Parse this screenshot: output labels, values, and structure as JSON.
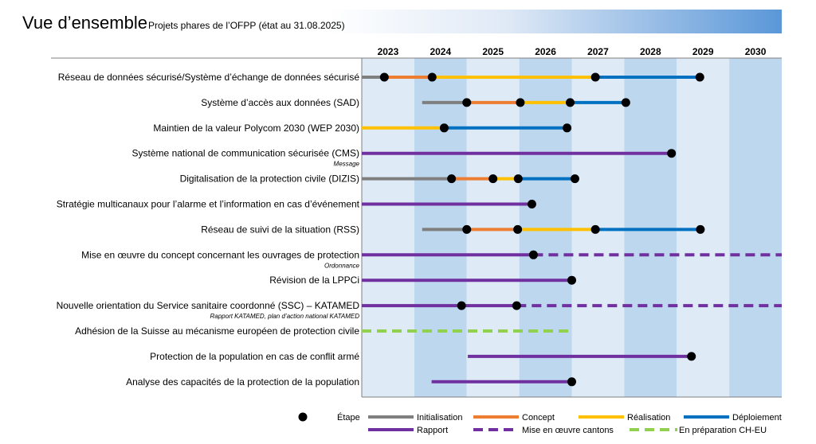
{
  "title": "Vue d’ensemble",
  "subtitle": "Projets phares de l’OFPP (état au 31.08.2025)",
  "colors": {
    "Initialisation": "#7f7f7f",
    "Concept": "#ed7d31",
    "Réalisation": "#ffc000",
    "Déploiement": "#0070c0",
    "Rapport": "#7030a0",
    "Mise en œuvre cantons": "#7030a0",
    "En préparation CH-EU": "#92d050",
    "year_light": "#deebf7",
    "year_dark": "#bdd7ee",
    "milestone": "#000000"
  },
  "chart_data": {
    "type": "gantt",
    "x_axis": {
      "years": [
        "2023",
        "2024",
        "2025",
        "2026",
        "2027",
        "2028",
        "2029",
        "2030"
      ],
      "range": [
        2023.0,
        2031.0
      ],
      "unit": "year"
    },
    "rows": [
      {
        "label": "Réseau de données sécurisé/Système d’échange de données sécurisé",
        "sublabel": "",
        "segments": [
          {
            "phase": "Initialisation",
            "start": 2023.0,
            "end": 2023.43
          },
          {
            "phase": "Concept",
            "start": 2023.43,
            "end": 2024.34
          },
          {
            "phase": "Réalisation",
            "start": 2024.34,
            "end": 2027.45
          },
          {
            "phase": "Déploiement",
            "start": 2027.45,
            "end": 2029.44
          }
        ],
        "milestones": [
          2023.43,
          2024.34,
          2027.45,
          2029.44
        ]
      },
      {
        "label": "Système d’accès aux données (SAD)",
        "sublabel": "",
        "segments": [
          {
            "phase": "Initialisation",
            "start": 2024.15,
            "end": 2025.0
          },
          {
            "phase": "Concept",
            "start": 2025.0,
            "end": 2026.02
          },
          {
            "phase": "Réalisation",
            "start": 2026.02,
            "end": 2026.97
          },
          {
            "phase": "Déploiement",
            "start": 2026.97,
            "end": 2028.03
          }
        ],
        "milestones": [
          2025.0,
          2026.02,
          2026.97,
          2028.03
        ]
      },
      {
        "label": "Maintien de la valeur Polycom 2030 (WEP 2030)",
        "sublabel": "",
        "segments": [
          {
            "phase": "Réalisation",
            "start": 2023.0,
            "end": 2024.57
          },
          {
            "phase": "Déploiement",
            "start": 2024.57,
            "end": 2026.91
          }
        ],
        "milestones": [
          2024.57,
          2026.91
        ]
      },
      {
        "label": "Système national de communication sécurisée (CMS)",
        "sublabel": "Message",
        "segments": [
          {
            "phase": "Rapport",
            "start": 2023.0,
            "end": 2028.9
          }
        ],
        "milestones": [
          2028.9
        ]
      },
      {
        "label": "Digitalisation de la protection civile (DIZIS)",
        "sublabel": "",
        "segments": [
          {
            "phase": "Initialisation",
            "start": 2023.0,
            "end": 2024.71
          },
          {
            "phase": "Concept",
            "start": 2024.71,
            "end": 2025.5
          },
          {
            "phase": "Réalisation",
            "start": 2025.5,
            "end": 2025.98
          },
          {
            "phase": "Déploiement",
            "start": 2025.98,
            "end": 2027.06
          }
        ],
        "milestones": [
          2024.71,
          2025.5,
          2025.98,
          2027.06
        ]
      },
      {
        "label": "Stratégie multicanaux pour l’alarme et l’information en cas d’événement",
        "sublabel": "",
        "segments": [
          {
            "phase": "Rapport",
            "start": 2023.0,
            "end": 2026.24
          }
        ],
        "milestones": [
          2026.24
        ]
      },
      {
        "label": "Réseau de suivi de la situation (RSS)",
        "sublabel": "",
        "segments": [
          {
            "phase": "Initialisation",
            "start": 2024.15,
            "end": 2025.0
          },
          {
            "phase": "Concept",
            "start": 2025.0,
            "end": 2025.97
          },
          {
            "phase": "Réalisation",
            "start": 2025.97,
            "end": 2027.45
          },
          {
            "phase": "Déploiement",
            "start": 2027.45,
            "end": 2029.45
          }
        ],
        "milestones": [
          2025.0,
          2025.97,
          2027.45,
          2029.45
        ]
      },
      {
        "label": "Mise en œuvre du concept concernant les ouvrages de protection",
        "sublabel": "Ordonnance",
        "segments": [
          {
            "phase": "Rapport",
            "start": 2023.0,
            "end": 2026.27
          },
          {
            "phase": "Mise en œuvre cantons",
            "start": 2026.27,
            "end": 2031.0
          }
        ],
        "milestones": [
          2026.27
        ]
      },
      {
        "label": "Révision de la LPPCi",
        "sublabel": "",
        "segments": [
          {
            "phase": "Rapport",
            "start": 2023.0,
            "end": 2027.0
          }
        ],
        "milestones": [
          2027.0
        ]
      },
      {
        "label": "Nouvelle orientation du Service sanitaire coordonné (SSC) – KATAMED",
        "sublabel": "Rapport KATAMED, plan d’action national KATAMED",
        "segments": [
          {
            "phase": "Rapport",
            "start": 2023.0,
            "end": 2025.95
          },
          {
            "phase": "Mise en œuvre cantons",
            "start": 2025.95,
            "end": 2031.0
          }
        ],
        "milestones": [
          2024.9,
          2025.95
        ]
      },
      {
        "label": "Adhésion de la Suisse au mécanisme européen de protection civile",
        "sublabel": "",
        "segments": [
          {
            "phase": "En préparation CH-EU",
            "start": 2023.0,
            "end": 2026.97
          }
        ],
        "milestones": []
      },
      {
        "label": "Protection de la population en cas de conflit armé",
        "sublabel": "",
        "segments": [
          {
            "phase": "Rapport",
            "start": 2025.02,
            "end": 2029.28
          }
        ],
        "milestones": [
          2029.28
        ]
      },
      {
        "label": "Analyse des capacités de la protection de la population",
        "sublabel": "",
        "segments": [
          {
            "phase": "Rapport",
            "start": 2024.33,
            "end": 2027.0
          }
        ],
        "milestones": [
          2027.0
        ]
      }
    ],
    "legend": [
      {
        "label": "Étape",
        "kind": "milestone"
      },
      {
        "label": "Initialisation",
        "kind": "solid"
      },
      {
        "label": "Concept",
        "kind": "solid"
      },
      {
        "label": "Réalisation",
        "kind": "solid"
      },
      {
        "label": "Déploiement",
        "kind": "solid"
      },
      {
        "label": "Rapport",
        "kind": "solid"
      },
      {
        "label": "Mise en œuvre cantons",
        "kind": "dashed"
      },
      {
        "label": "En préparation CH-EU",
        "kind": "dashed"
      }
    ]
  }
}
